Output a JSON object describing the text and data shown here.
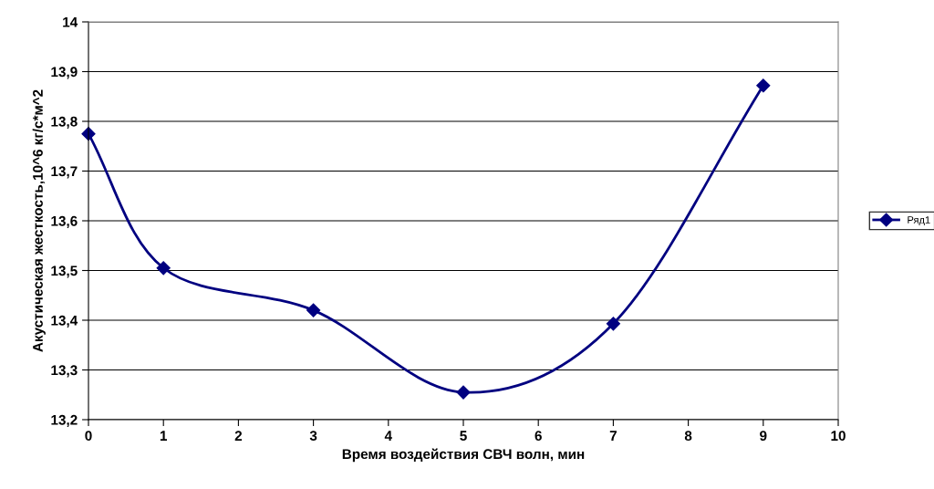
{
  "chart_data": {
    "type": "line",
    "xlabel": "Время воздействия СВЧ волн, мин",
    "ylabel": "Акустическая жесткость,10^6 кг/с*м^2",
    "x": [
      0,
      1,
      3,
      5,
      7,
      9
    ],
    "series": [
      {
        "name": "Ряд1",
        "color": "#000080",
        "values": [
          13.775,
          13.505,
          13.42,
          13.255,
          13.393,
          13.872
        ]
      }
    ],
    "xlim": [
      0,
      10
    ],
    "xticks": [
      0,
      1,
      2,
      3,
      4,
      5,
      6,
      7,
      8,
      9,
      10
    ],
    "ylim": [
      13.2,
      14
    ],
    "yticks": [
      {
        "value": 13.2,
        "label": "13,2"
      },
      {
        "value": 13.3,
        "label": "13,3"
      },
      {
        "value": 13.4,
        "label": "13,4"
      },
      {
        "value": 13.5,
        "label": "13,5"
      },
      {
        "value": 13.6,
        "label": "13,6"
      },
      {
        "value": 13.7,
        "label": "13,7"
      },
      {
        "value": 13.8,
        "label": "13,8"
      },
      {
        "value": 13.9,
        "label": "13,9"
      },
      {
        "value": 14,
        "label": "14"
      }
    ],
    "grid": "y",
    "legend": "right",
    "marker": "diamond",
    "line_style": "solid"
  }
}
